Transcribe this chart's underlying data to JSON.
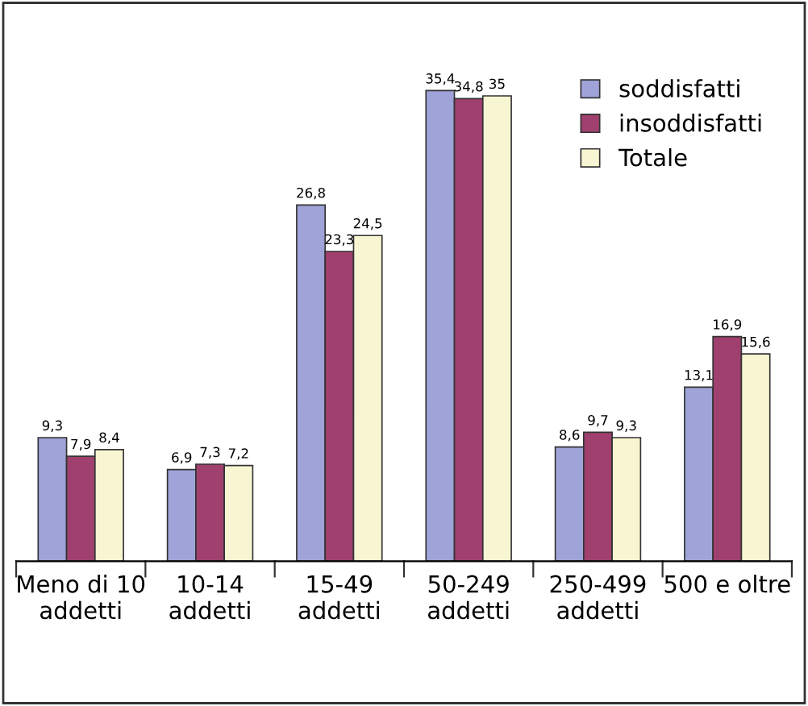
{
  "chart_data": {
    "type": "bar",
    "categories": [
      "Meno di 10\naddetti",
      "10-14\naddetti",
      "15-49\naddetti",
      "50-249\naddetti",
      "250-499\naddetti",
      "500 e oltre"
    ],
    "series": [
      {
        "name": "soddisfatti",
        "color": "#9fa3d8",
        "values": [
          9.3,
          6.9,
          26.8,
          35.4,
          8.6,
          13.1
        ],
        "value_labels": [
          "9,3",
          "6,9",
          "26,8",
          "35,4",
          "8,6",
          "13,1"
        ]
      },
      {
        "name": "insoddisfatti",
        "color": "#a0406e",
        "values": [
          7.9,
          7.3,
          23.3,
          34.8,
          9.7,
          16.9
        ],
        "value_labels": [
          "7,9",
          "7,3",
          "23,3",
          "34,8",
          "9,7",
          "16,9"
        ]
      },
      {
        "name": "Totale",
        "color": "#f8f5d2",
        "values": [
          8.4,
          7.2,
          24.5,
          35,
          9.3,
          15.6
        ],
        "value_labels": [
          "8,4",
          "7,2",
          "24,5",
          "35",
          "9,3",
          "15,6"
        ]
      }
    ],
    "legend": "top right"
  }
}
